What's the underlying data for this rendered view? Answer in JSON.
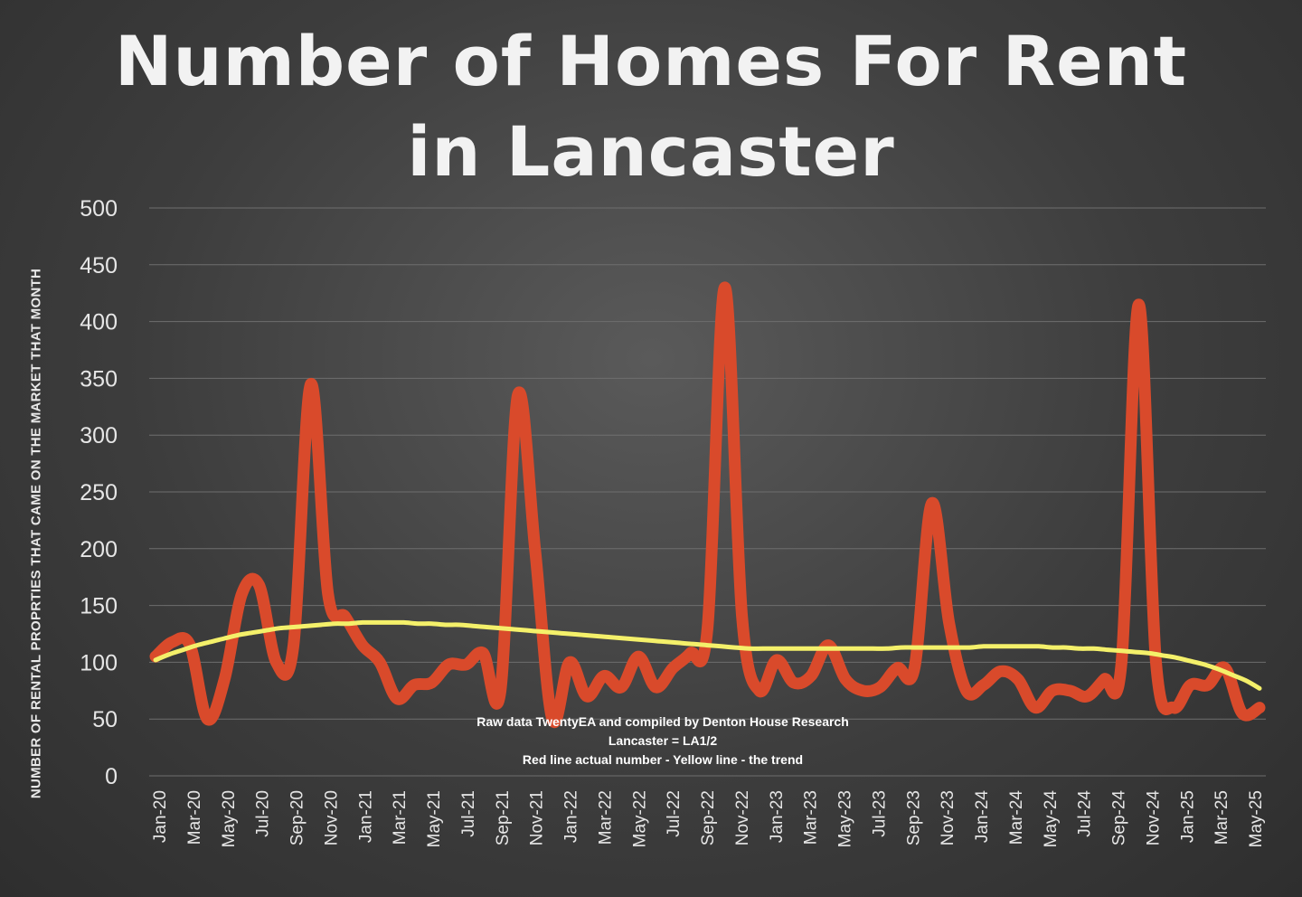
{
  "chart_data": {
    "type": "line",
    "title_line1": "Number of Homes For Rent",
    "title_line2": "in Lancaster",
    "ylabel": "NUMBER OF RENTAL PROPRTIES THAT CAME ON THE MARKET THAT MONTH",
    "xlabel": "",
    "ylim": [
      0,
      500
    ],
    "y_ticks": [
      0,
      50,
      100,
      150,
      200,
      250,
      300,
      350,
      400,
      450,
      500
    ],
    "grid": true,
    "x_tick_labels": [
      "Jan-20",
      "Mar-20",
      "May-20",
      "Jul-20",
      "Sep-20",
      "Nov-20",
      "Jan-21",
      "Mar-21",
      "May-21",
      "Jul-21",
      "Sep-21",
      "Nov-21",
      "Jan-22",
      "Mar-22",
      "May-22",
      "Jul-22",
      "Sep-22",
      "Nov-22",
      "Jan-23",
      "Mar-23",
      "May-23",
      "Jul-23",
      "Sep-23",
      "Nov-23",
      "Jan-24",
      "Mar-24",
      "May-24",
      "Jul-24",
      "Sep-24",
      "Nov-24",
      "Jan-25",
      "Mar-25",
      "May-25"
    ],
    "series": [
      {
        "color": "#d94a2b",
        "values": [
          105,
          118,
          115,
          50,
          85,
          160,
          168,
          100,
          115,
          345,
          160,
          140,
          115,
          100,
          68,
          80,
          82,
          98,
          98,
          108,
          75,
          335,
          200,
          50,
          100,
          70,
          88,
          78,
          105,
          78,
          95,
          108,
          130,
          430,
          140,
          75,
          102,
          82,
          88,
          115,
          85,
          75,
          78,
          95,
          95,
          240,
          135,
          75,
          80,
          92,
          85,
          60,
          75,
          75,
          70,
          85,
          100,
          415,
          100,
          60,
          80,
          80,
          95,
          55,
          60
        ]
      },
      {
        "color": "#f4f06a",
        "values": [
          102,
          107,
          111,
          115,
          118,
          121,
          124,
          126,
          128,
          130,
          131,
          132,
          133,
          134,
          134,
          135,
          135,
          135,
          135,
          134,
          134,
          133,
          133,
          132,
          131,
          130,
          129,
          128,
          127,
          126,
          125,
          124,
          123,
          122,
          121,
          120,
          119,
          118,
          117,
          116,
          115,
          114,
          113,
          112,
          112,
          112,
          112,
          112,
          112,
          112,
          112,
          112,
          112,
          112,
          113,
          113,
          113,
          113,
          113,
          113,
          114,
          114,
          114,
          114,
          114,
          113,
          113,
          112,
          112,
          111,
          110,
          109,
          108,
          106,
          104,
          101,
          98,
          94,
          89,
          84,
          77
        ]
      }
    ],
    "notes": [
      "Raw data TwentyEA and compiled by Denton House Research",
      "Lancaster  = LA1/2",
      "Red line actual number - Yellow line  - the trend"
    ]
  }
}
